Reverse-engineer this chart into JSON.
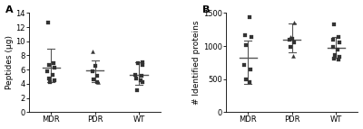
{
  "panel_A": {
    "label": "A",
    "ylabel": "Peptides (μg)",
    "ylim": [
      0,
      14
    ],
    "yticks": [
      0,
      2,
      4,
      6,
      8,
      10,
      12,
      14
    ],
    "groups": {
      "MDR": {
        "points_sq": [
          12.7,
          6.9,
          6.6,
          6.3,
          5.8,
          5.2,
          4.8,
          4.5,
          4.2
        ],
        "points_tri": [],
        "mean": 6.3,
        "sd_low": 4.2,
        "sd_high": 9.0
      },
      "PDR": {
        "points_sq": [
          6.5,
          5.8,
          5.1,
          4.6,
          4.3
        ],
        "points_tri": [
          8.6,
          4.3
        ],
        "mean": 5.9,
        "sd_low": 4.2,
        "sd_high": 7.35
      },
      "WT": {
        "points_sq": [
          7.1,
          6.9,
          6.6,
          5.3,
          5.1,
          4.7,
          4.5,
          4.2,
          3.1
        ],
        "points_tri": [],
        "mean": 5.2,
        "sd_low": 3.9,
        "sd_high": 7.0
      }
    },
    "group_order": [
      "MDR",
      "PDR",
      "WT"
    ],
    "x_positions": [
      1,
      2,
      3
    ]
  },
  "panel_B": {
    "label": "B",
    "ylabel": "# Identified proteins",
    "ylim": [
      0,
      1500
    ],
    "yticks": [
      0,
      500,
      1000,
      1500
    ],
    "groups": {
      "MDR": {
        "points_sq": [
          1430,
          1160,
          1130,
          1010,
          720,
          640,
          490,
          450
        ],
        "points_tri": [],
        "mean": 820,
        "sd_low": 430,
        "sd_high": 1080
      },
      "PDR": {
        "points_sq": [
          1110,
          1090,
          1060,
          980
        ],
        "points_tri": [
          1350,
          1140,
          850
        ],
        "mean": 1090,
        "sd_low": 910,
        "sd_high": 1340
      },
      "WT": {
        "points_sq": [
          1330,
          1130,
          1090,
          1060,
          980,
          950,
          870,
          840,
          810,
          790
        ],
        "points_tri": [],
        "mean": 970,
        "sd_low": 820,
        "sd_high": 1140
      }
    },
    "group_order": [
      "MDR",
      "PDR",
      "WT"
    ],
    "x_positions": [
      1,
      2,
      3
    ]
  },
  "figure": {
    "bg_color": "#ffffff",
    "dot_color": "#333333",
    "line_color": "#555555",
    "dot_size": 9,
    "font_size": 6.5,
    "label_font_size": 8,
    "tick_font_size": 6
  }
}
